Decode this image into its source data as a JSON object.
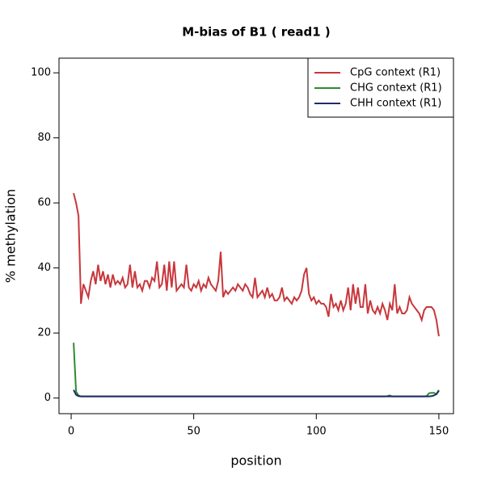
{
  "chart_data": {
    "type": "line",
    "title": "M-bias of  B1   ( read1 )",
    "xlabel": "position",
    "ylabel": "% methylation",
    "x": [
      1,
      2,
      3,
      4,
      5,
      6,
      7,
      8,
      9,
      10,
      11,
      12,
      13,
      14,
      15,
      16,
      17,
      18,
      19,
      20,
      21,
      22,
      23,
      24,
      25,
      26,
      27,
      28,
      29,
      30,
      31,
      32,
      33,
      34,
      35,
      36,
      37,
      38,
      39,
      40,
      41,
      42,
      43,
      44,
      45,
      46,
      47,
      48,
      49,
      50,
      51,
      52,
      53,
      54,
      55,
      56,
      57,
      58,
      59,
      60,
      61,
      62,
      63,
      64,
      65,
      66,
      67,
      68,
      69,
      70,
      71,
      72,
      73,
      74,
      75,
      76,
      77,
      78,
      79,
      80,
      81,
      82,
      83,
      84,
      85,
      86,
      87,
      88,
      89,
      90,
      91,
      92,
      93,
      94,
      95,
      96,
      97,
      98,
      99,
      100,
      101,
      102,
      103,
      104,
      105,
      106,
      107,
      108,
      109,
      110,
      111,
      112,
      113,
      114,
      115,
      116,
      117,
      118,
      119,
      120,
      121,
      122,
      123,
      124,
      125,
      126,
      127,
      128,
      129,
      130,
      131,
      132,
      133,
      134,
      135,
      136,
      137,
      138,
      139,
      140,
      141,
      142,
      143,
      144,
      145,
      146,
      147,
      148,
      149,
      150
    ],
    "series": [
      {
        "name": "CpG context (R1)",
        "color": "#c8373c",
        "values": [
          63,
          60,
          56,
          29,
          35,
          33,
          31,
          36,
          39,
          35,
          41,
          36,
          39,
          35,
          38,
          34,
          38,
          35,
          36,
          35,
          37,
          34,
          35,
          41,
          34,
          39,
          34,
          35,
          33,
          36,
          36,
          34,
          37,
          36,
          42,
          34,
          35,
          41,
          33,
          42,
          34,
          42,
          33,
          34,
          35,
          34,
          41,
          34,
          33,
          35,
          34,
          36,
          33,
          35,
          34,
          37,
          35,
          34,
          33,
          36,
          45,
          31,
          33,
          32,
          33,
          34,
          33,
          35,
          34,
          33,
          35,
          34,
          32,
          31,
          37,
          31,
          32,
          33,
          31,
          34,
          31,
          32,
          30,
          30,
          31,
          34,
          30,
          31,
          30,
          29,
          31,
          30,
          31,
          33,
          38,
          40,
          32,
          30,
          31,
          29,
          30,
          29,
          29,
          28,
          25,
          32,
          28,
          29,
          27,
          30,
          27,
          29,
          34,
          27,
          35,
          29,
          34,
          28,
          28,
          35,
          26,
          30,
          27,
          26,
          28,
          26,
          29,
          27,
          24,
          29,
          27,
          35,
          26,
          28,
          26,
          26,
          27,
          31,
          29,
          28,
          27,
          26,
          24,
          27,
          28,
          28,
          28,
          27,
          24,
          19
        ]
      },
      {
        "name": "CHG context (R1)",
        "color": "#2e8b2e",
        "values": [
          17,
          2,
          0.8,
          0.5,
          0.5,
          0.5,
          0.5,
          0.5,
          0.5,
          0.5,
          0.5,
          0.5,
          0.5,
          0.5,
          0.5,
          0.5,
          0.5,
          0.5,
          0.5,
          0.5,
          0.5,
          0.5,
          0.5,
          0.5,
          0.5,
          0.5,
          0.5,
          0.5,
          0.5,
          0.5,
          0.5,
          0.5,
          0.5,
          0.5,
          0.5,
          0.5,
          0.5,
          0.5,
          0.5,
          0.5,
          0.5,
          0.5,
          0.5,
          0.5,
          0.5,
          0.5,
          0.5,
          0.5,
          0.5,
          0.5,
          0.5,
          0.5,
          0.5,
          0.5,
          0.5,
          0.5,
          0.5,
          0.5,
          0.5,
          0.5,
          0.5,
          0.5,
          0.5,
          0.5,
          0.5,
          0.5,
          0.5,
          0.5,
          0.5,
          0.5,
          0.5,
          0.5,
          0.5,
          0.5,
          0.5,
          0.5,
          0.5,
          0.5,
          0.5,
          0.5,
          0.5,
          0.5,
          0.5,
          0.5,
          0.5,
          0.5,
          0.5,
          0.5,
          0.5,
          0.5,
          0.5,
          0.5,
          0.5,
          0.5,
          0.5,
          0.5,
          0.5,
          0.5,
          0.5,
          0.5,
          0.5,
          0.5,
          0.5,
          0.5,
          0.5,
          0.5,
          0.5,
          0.5,
          0.5,
          0.5,
          0.5,
          0.5,
          0.5,
          0.5,
          0.5,
          0.5,
          0.5,
          0.5,
          0.5,
          0.5,
          0.5,
          0.5,
          0.5,
          0.5,
          0.5,
          0.5,
          0.5,
          0.5,
          0.6,
          0.8,
          0.5,
          0.5,
          0.5,
          0.5,
          0.5,
          0.5,
          0.5,
          0.5,
          0.5,
          0.5,
          0.5,
          0.5,
          0.5,
          0.5,
          0.6,
          1.5,
          1.6,
          1.6,
          1.2,
          2.5
        ]
      },
      {
        "name": "CHH context (R1)",
        "color": "#1f2a6b",
        "values": [
          2.5,
          1,
          0.6,
          0.5,
          0.5,
          0.5,
          0.5,
          0.5,
          0.5,
          0.5,
          0.5,
          0.5,
          0.5,
          0.5,
          0.5,
          0.5,
          0.5,
          0.5,
          0.5,
          0.5,
          0.5,
          0.5,
          0.5,
          0.5,
          0.5,
          0.5,
          0.5,
          0.5,
          0.5,
          0.5,
          0.5,
          0.5,
          0.5,
          0.5,
          0.5,
          0.5,
          0.5,
          0.5,
          0.5,
          0.5,
          0.5,
          0.5,
          0.5,
          0.5,
          0.5,
          0.5,
          0.5,
          0.5,
          0.5,
          0.5,
          0.5,
          0.5,
          0.5,
          0.5,
          0.5,
          0.5,
          0.5,
          0.5,
          0.5,
          0.5,
          0.5,
          0.5,
          0.5,
          0.5,
          0.5,
          0.5,
          0.5,
          0.5,
          0.5,
          0.5,
          0.5,
          0.5,
          0.5,
          0.5,
          0.5,
          0.5,
          0.5,
          0.5,
          0.5,
          0.5,
          0.5,
          0.5,
          0.5,
          0.5,
          0.5,
          0.5,
          0.5,
          0.5,
          0.5,
          0.5,
          0.5,
          0.5,
          0.5,
          0.5,
          0.5,
          0.5,
          0.5,
          0.5,
          0.5,
          0.5,
          0.5,
          0.5,
          0.5,
          0.5,
          0.5,
          0.5,
          0.5,
          0.5,
          0.5,
          0.5,
          0.5,
          0.5,
          0.5,
          0.5,
          0.5,
          0.5,
          0.5,
          0.5,
          0.5,
          0.5,
          0.5,
          0.5,
          0.5,
          0.5,
          0.5,
          0.5,
          0.5,
          0.5,
          0.5,
          0.5,
          0.5,
          0.5,
          0.5,
          0.5,
          0.5,
          0.5,
          0.5,
          0.5,
          0.5,
          0.5,
          0.5,
          0.5,
          0.5,
          0.5,
          0.5,
          0.5,
          0.6,
          0.8,
          1.2,
          2.2
        ]
      }
    ],
    "xlim": [
      -4.96,
      155.96
    ],
    "xticks": [
      0,
      50,
      100,
      150
    ],
    "ylim": [
      -4.8,
      104.5
    ],
    "yticks": [
      0,
      20,
      40,
      60,
      80,
      100
    ],
    "legend": "top-right"
  }
}
